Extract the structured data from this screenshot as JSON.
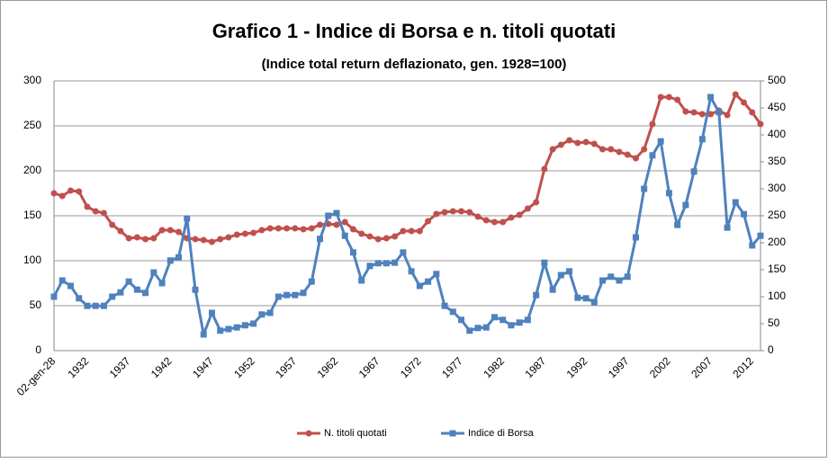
{
  "chart_data": {
    "type": "line",
    "title": "Grafico 1 - Indice di Borsa e n. titoli quotati",
    "subtitle": "(Indice total return deflazionato, gen. 1928=100)",
    "categories": [
      "02-gen-28",
      null,
      null,
      null,
      "1932",
      null,
      null,
      null,
      null,
      "1937",
      null,
      null,
      null,
      null,
      "1942",
      null,
      null,
      null,
      null,
      "1947",
      null,
      null,
      null,
      null,
      "1952",
      null,
      null,
      null,
      null,
      "1957",
      null,
      null,
      null,
      null,
      "1962",
      null,
      null,
      null,
      null,
      "1967",
      null,
      null,
      null,
      null,
      "1972",
      null,
      null,
      null,
      null,
      "1977",
      null,
      null,
      null,
      null,
      "1982",
      null,
      null,
      null,
      null,
      "1987",
      null,
      null,
      null,
      null,
      "1992",
      null,
      null,
      null,
      null,
      "1997",
      null,
      null,
      null,
      null,
      "2002",
      null,
      null,
      null,
      null,
      "2007",
      null,
      null,
      null,
      null,
      "2012",
      null
    ],
    "series": [
      {
        "name": "N. titoli quotati",
        "color": "#c0504d",
        "marker": "circle",
        "values": [
          175,
          172,
          178,
          177,
          160,
          155,
          153,
          140,
          133,
          125,
          126,
          124,
          125,
          134,
          134,
          132,
          125,
          124,
          123,
          121,
          124,
          126,
          129,
          130,
          131,
          134,
          136,
          136,
          136,
          136,
          135,
          136,
          140,
          141,
          140,
          143,
          135,
          130,
          127,
          124,
          125,
          127,
          133,
          133,
          133,
          144,
          152,
          154,
          155,
          155,
          154,
          149,
          145,
          143,
          143,
          148,
          151,
          158,
          165,
          202,
          224,
          229,
          234,
          231,
          232,
          230,
          224,
          224,
          221,
          218,
          214,
          224,
          252,
          282,
          282,
          279,
          266,
          265,
          263,
          263,
          267,
          262,
          285,
          276,
          265,
          252
        ]
      },
      {
        "name": "Indice di Borsa",
        "color": "#4f81bd",
        "marker": "square",
        "axis": "y2",
        "values": [
          100,
          130,
          120,
          97,
          83,
          83,
          83,
          100,
          108,
          128,
          113,
          107,
          145,
          125,
          167,
          173,
          245,
          113,
          30,
          70,
          37,
          40,
          43,
          47,
          50,
          67,
          70,
          100,
          103,
          103,
          107,
          128,
          207,
          250,
          255,
          213,
          182,
          130,
          157,
          162,
          162,
          163,
          182,
          147,
          120,
          128,
          142,
          83,
          72,
          57,
          37,
          42,
          43,
          62,
          57,
          47,
          52,
          57,
          103,
          163,
          113,
          140,
          147,
          98,
          97,
          90,
          130,
          137,
          130,
          137,
          210,
          300,
          362,
          388,
          292,
          233,
          270,
          332,
          392,
          470,
          442,
          228,
          275,
          253,
          195,
          213
        ]
      }
    ],
    "ylim": [
      0,
      300
    ],
    "yticks": [
      0,
      50,
      100,
      150,
      200,
      250,
      300
    ],
    "y2lim": [
      0,
      500
    ],
    "y2ticks": [
      0,
      50,
      100,
      150,
      200,
      250,
      300,
      350,
      400,
      450,
      500
    ],
    "grid": true,
    "legend": "bottom"
  }
}
